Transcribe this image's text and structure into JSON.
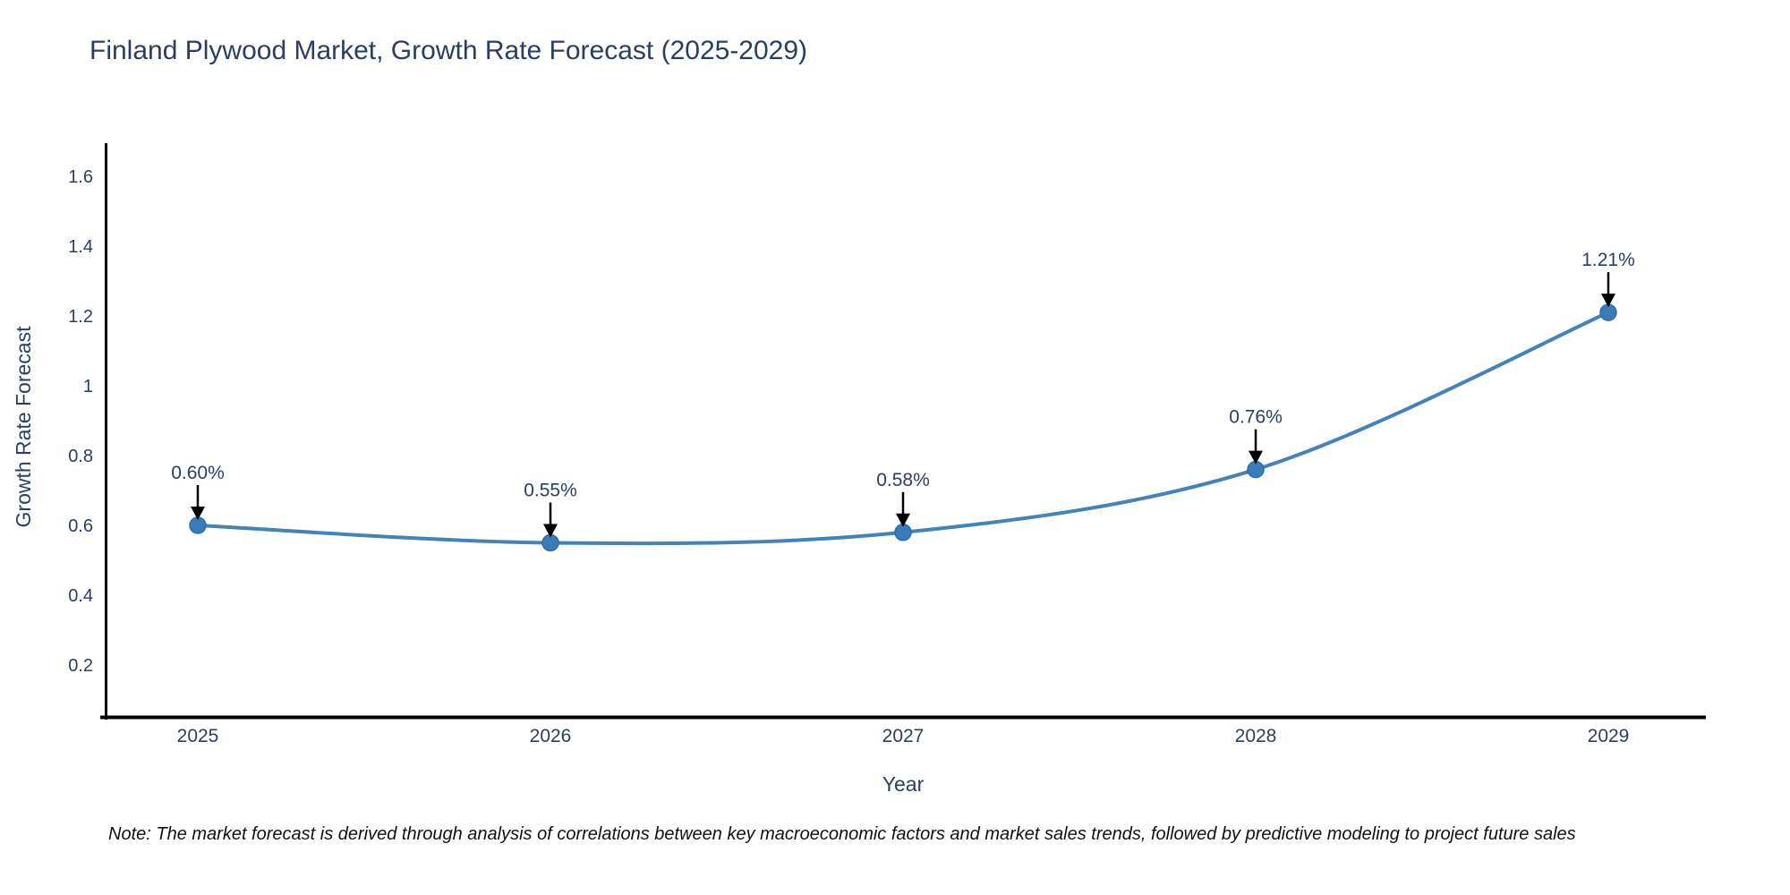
{
  "page": {
    "title": "Finland Plywood Market, Growth Rate Forecast (2025-2029)",
    "note": "Note: The market forecast is derived through analysis of correlations between key macroeconomic factors and market sales trends, followed by predictive modeling to project future sales"
  },
  "chart_data": {
    "type": "line",
    "title": "Finland Plywood Market, Growth Rate Forecast (2025-2029)",
    "categories": [
      "2025",
      "2026",
      "2027",
      "2028",
      "2029"
    ],
    "series": [
      {
        "name": "Growth Rate Forecast",
        "values": [
          0.6,
          0.55,
          0.58,
          0.76,
          1.21
        ]
      }
    ],
    "point_labels": [
      "0.60%",
      "0.55%",
      "0.58%",
      "0.76%",
      "1.21%"
    ],
    "xlabel": "Year",
    "ylabel": "Growth Rate Forecast",
    "ytick_labels": [
      "0.2",
      "0.4",
      "0.6",
      "0.8",
      "1",
      "1.2",
      "1.4",
      "1.6"
    ],
    "ytick_values": [
      0.2,
      0.4,
      0.6,
      0.8,
      1.0,
      1.2,
      1.4,
      1.6
    ],
    "ylim": [
      0.05,
      1.72
    ],
    "line_shape": "spline",
    "grid": false,
    "legend_position": "none",
    "colors": {
      "line": "#4383b8",
      "marker_fill": "#3a7cba",
      "marker_edge": "#2e6da6",
      "arrow": "#000000",
      "label_text": "#2a3f5f",
      "axis_line": "#000000",
      "note_text": "#111111"
    }
  }
}
